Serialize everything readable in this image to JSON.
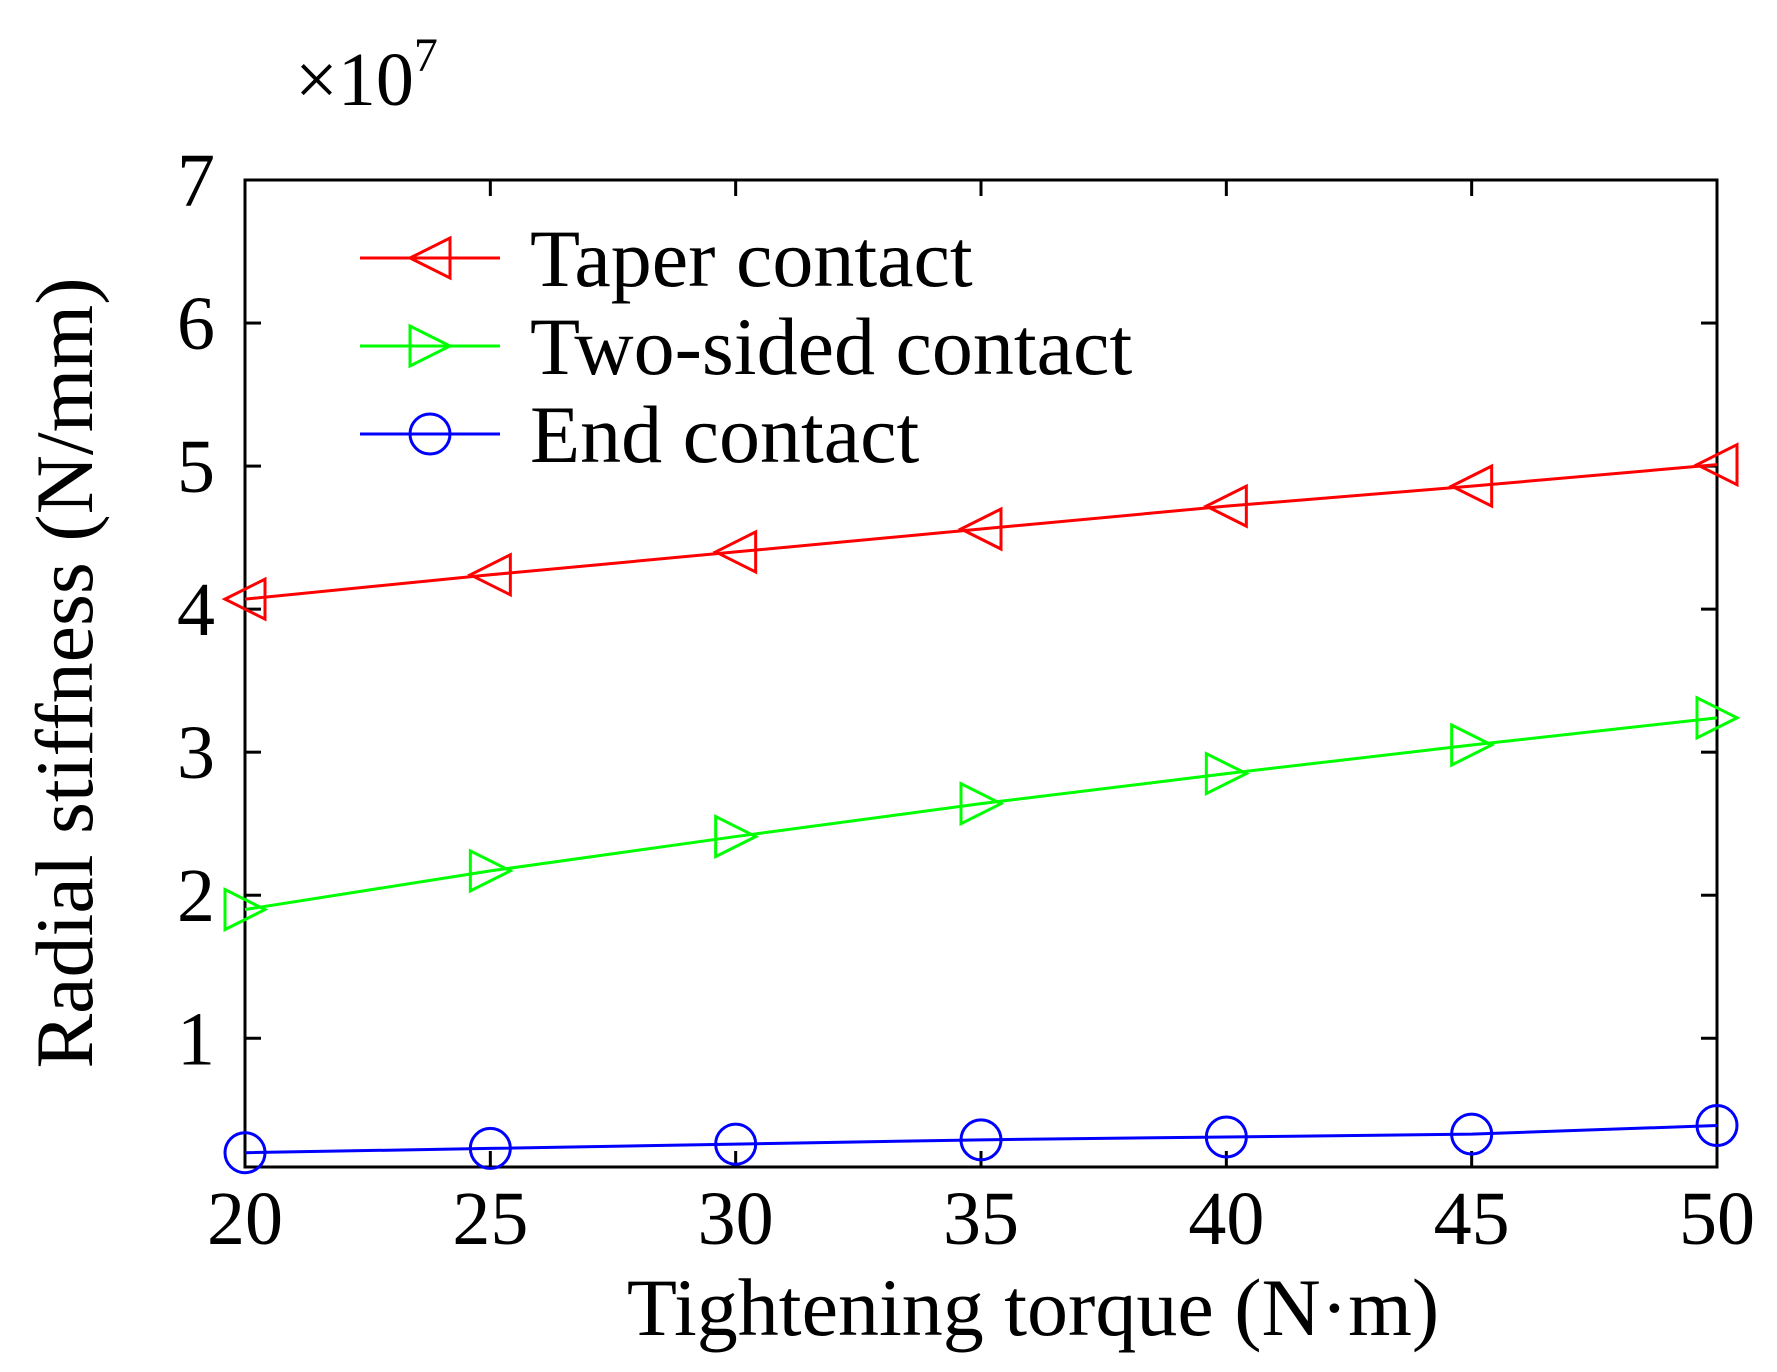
{
  "chart_data": {
    "type": "line",
    "xlabel": "Tightening torque (N·m)",
    "ylabel": "Radial stiffness (N/mm)",
    "y_multiplier": {
      "base": "×10",
      "exponent": "7"
    },
    "xlim": [
      20,
      50
    ],
    "ylim": [
      0.1,
      7
    ],
    "x_ticks": [
      20,
      25,
      30,
      35,
      40,
      45,
      50
    ],
    "y_ticks": [
      1,
      2,
      3,
      4,
      5,
      6,
      7
    ],
    "grid": false,
    "legend_position": "top-left",
    "x": [
      20,
      25,
      30,
      35,
      40,
      45,
      50
    ],
    "series": [
      {
        "name": "Taper contact",
        "color": "#ff0000",
        "marker": "triangle-left",
        "values": [
          4.07,
          4.24,
          4.4,
          4.56,
          4.72,
          4.86,
          5.01
        ]
      },
      {
        "name": "Two-sided contact",
        "color": "#00ff00",
        "marker": "triangle-right",
        "values": [
          1.9,
          2.17,
          2.41,
          2.64,
          2.85,
          3.05,
          3.24
        ]
      },
      {
        "name": "End contact",
        "color": "#0000ff",
        "marker": "circle",
        "values": [
          0.2,
          0.23,
          0.26,
          0.29,
          0.31,
          0.33,
          0.39
        ]
      }
    ]
  }
}
